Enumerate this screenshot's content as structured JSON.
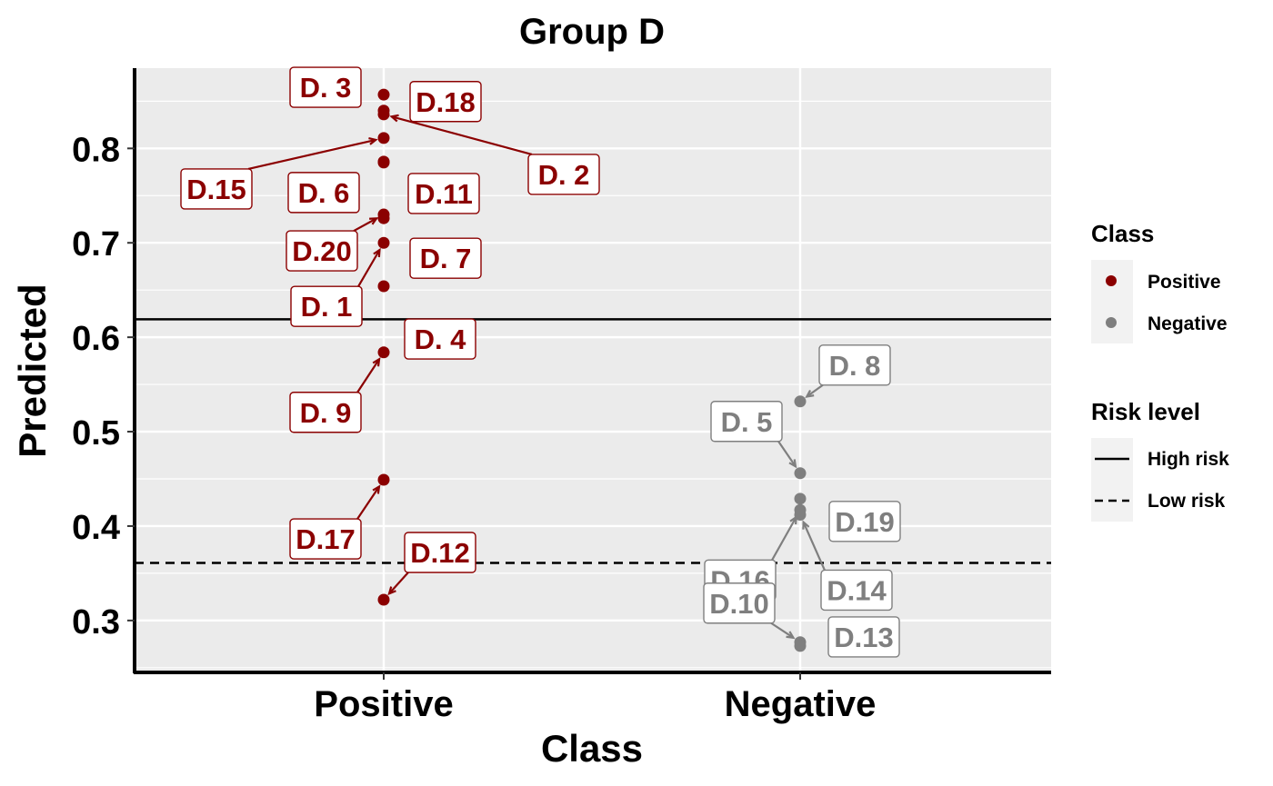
{
  "chart_data": {
    "type": "scatter",
    "title": "Group D",
    "xlabel": "Class",
    "ylabel": "Predicted",
    "categories": [
      "Positive",
      "Negative"
    ],
    "ylim": [
      0.245,
      0.885
    ],
    "yticks": [
      "0.3",
      "0.4",
      "0.5",
      "0.6",
      "0.7",
      "0.8"
    ],
    "grid": true,
    "legend_position": "right",
    "colors": {
      "Positive": "#8B0000",
      "Negative": "#7F7F7F",
      "panel": "#EBEBEB",
      "grid": "#FFFFFF"
    },
    "thresholds": [
      {
        "name": "High risk",
        "value": 0.619,
        "style": "solid"
      },
      {
        "name": "Low risk",
        "value": 0.361,
        "style": "dashed"
      }
    ],
    "points": [
      {
        "label": "D. 3",
        "class": "Positive",
        "y": 0.857
      },
      {
        "label": "D.18",
        "class": "Positive",
        "y": 0.84
      },
      {
        "label": "D. 2",
        "class": "Positive",
        "y": 0.836
      },
      {
        "label": "D.15",
        "class": "Positive",
        "y": 0.811
      },
      {
        "label": "D. 6",
        "class": "Positive",
        "y": 0.786
      },
      {
        "label": "D.11",
        "class": "Positive",
        "y": 0.785
      },
      {
        "label": "D.20",
        "class": "Positive",
        "y": 0.73
      },
      {
        "label": "D. 7",
        "class": "Positive",
        "y": 0.726
      },
      {
        "label": "D. 1",
        "class": "Positive",
        "y": 0.7
      },
      {
        "label": "D. 4",
        "class": "Positive",
        "y": 0.654
      },
      {
        "label": "D. 9",
        "class": "Positive",
        "y": 0.584
      },
      {
        "label": "D.17",
        "class": "Positive",
        "y": 0.449
      },
      {
        "label": "D.12",
        "class": "Positive",
        "y": 0.322
      },
      {
        "label": "D. 8",
        "class": "Negative",
        "y": 0.532
      },
      {
        "label": "D. 5",
        "class": "Negative",
        "y": 0.456
      },
      {
        "label": "D.19",
        "class": "Negative",
        "y": 0.429
      },
      {
        "label": "D.16",
        "class": "Negative",
        "y": 0.417
      },
      {
        "label": "D.14",
        "class": "Negative",
        "y": 0.412
      },
      {
        "label": "D.10",
        "class": "Negative",
        "y": 0.277
      },
      {
        "label": "D.13",
        "class": "Negative",
        "y": 0.273
      }
    ]
  },
  "legend": {
    "class_title": "Class",
    "class_items": [
      {
        "label": "Positive",
        "color": "#8B0000"
      },
      {
        "label": "Negative",
        "color": "#7F7F7F"
      }
    ],
    "risk_title": "Risk level",
    "risk_items": [
      {
        "label": "High risk",
        "style": "solid"
      },
      {
        "label": "Low risk",
        "style": "dashed"
      }
    ]
  }
}
